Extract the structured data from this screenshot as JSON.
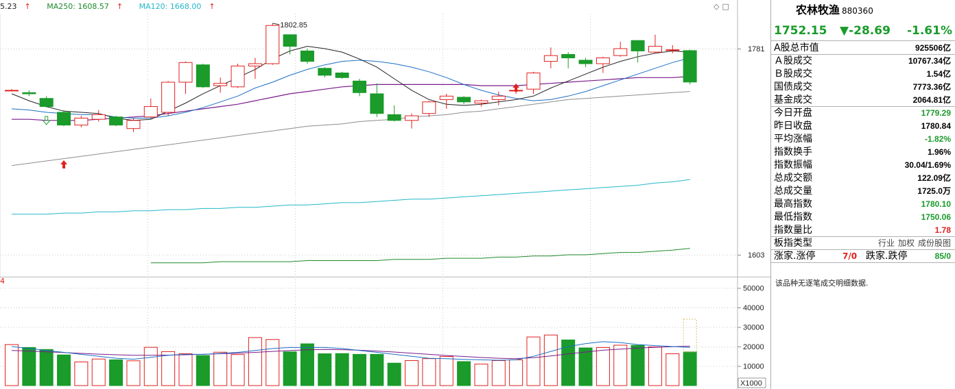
{
  "legend": {
    "ma_first": "5.23",
    "ma250": "MA250: 1608.57",
    "ma120": "MA120: 1668.00",
    "vol_label": "4"
  },
  "colors": {
    "up": "#e0201e",
    "down": "#1a9b2a",
    "ma5": "#222222",
    "ma10": "#1b6fc4",
    "ma20": "#7a1a8a",
    "ma60": "#8c8c8c",
    "ma120": "#23b7c9",
    "ma250": "#1e8a2a"
  },
  "chart_data": {
    "type": "candlestick",
    "price_axis": {
      "ticks": [
        1781,
        1603
      ]
    },
    "volume_axis": {
      "ticks": [
        50000,
        40000,
        30000,
        20000,
        10000
      ],
      "unit": "X1000"
    },
    "annotations": {
      "high_label": "1802.85"
    },
    "candles": [
      {
        "o": 1745,
        "c": 1745,
        "h": 1746,
        "l": 1745,
        "v": 21000
      },
      {
        "o": 1743,
        "c": 1742,
        "h": 1745,
        "l": 1740,
        "v": 19500
      },
      {
        "o": 1738,
        "c": 1731,
        "h": 1740,
        "l": 1730,
        "v": 18500
      },
      {
        "o": 1726,
        "c": 1715,
        "h": 1728,
        "l": 1714,
        "v": 15700
      },
      {
        "o": 1715,
        "c": 1721,
        "h": 1723,
        "l": 1713,
        "v": 12100
      },
      {
        "o": 1720,
        "c": 1724,
        "h": 1728,
        "l": 1718,
        "v": 13600
      },
      {
        "o": 1722,
        "c": 1715,
        "h": 1723,
        "l": 1714,
        "v": 13200
      },
      {
        "o": 1712,
        "c": 1719,
        "h": 1721,
        "l": 1709,
        "v": 12700
      },
      {
        "o": 1722,
        "c": 1731,
        "h": 1738,
        "l": 1721,
        "v": 19600
      },
      {
        "o": 1726,
        "c": 1752,
        "h": 1753,
        "l": 1723,
        "v": 17400
      },
      {
        "o": 1752,
        "c": 1769,
        "h": 1770,
        "l": 1742,
        "v": 16300
      },
      {
        "o": 1767,
        "c": 1748,
        "h": 1768,
        "l": 1747,
        "v": 15400
      },
      {
        "o": 1749,
        "c": 1751,
        "h": 1756,
        "l": 1743,
        "v": 17100
      },
      {
        "o": 1748,
        "c": 1766,
        "h": 1768,
        "l": 1747,
        "v": 15900
      },
      {
        "o": 1766,
        "c": 1768,
        "h": 1773,
        "l": 1755,
        "v": 24600
      },
      {
        "o": 1768,
        "c": 1801,
        "h": 1802.85,
        "l": 1767,
        "v": 23600
      },
      {
        "o": 1793,
        "c": 1783,
        "h": 1793,
        "l": 1776,
        "v": 17300
      },
      {
        "o": 1779,
        "c": 1770,
        "h": 1781,
        "l": 1768,
        "v": 21400
      },
      {
        "o": 1764,
        "c": 1758,
        "h": 1765,
        "l": 1756,
        "v": 16300
      },
      {
        "o": 1760,
        "c": 1756,
        "h": 1761,
        "l": 1755,
        "v": 16400
      },
      {
        "o": 1753,
        "c": 1743,
        "h": 1755,
        "l": 1740,
        "v": 16000
      },
      {
        "o": 1742,
        "c": 1725,
        "h": 1751,
        "l": 1722,
        "v": 16000
      },
      {
        "o": 1724,
        "c": 1719,
        "h": 1732,
        "l": 1718,
        "v": 11500
      },
      {
        "o": 1719,
        "c": 1723,
        "h": 1725,
        "l": 1712,
        "v": 12800
      },
      {
        "o": 1725,
        "c": 1735,
        "h": 1736,
        "l": 1722,
        "v": 13800
      },
      {
        "o": 1737,
        "c": 1740,
        "h": 1742,
        "l": 1729,
        "v": 14900
      },
      {
        "o": 1739,
        "c": 1735,
        "h": 1740,
        "l": 1733,
        "v": 12300
      },
      {
        "o": 1734,
        "c": 1736,
        "h": 1737,
        "l": 1731,
        "v": 11000
      },
      {
        "o": 1737,
        "c": 1740,
        "h": 1744,
        "l": 1732,
        "v": 12800
      },
      {
        "o": 1745,
        "c": 1745,
        "h": 1745,
        "l": 1742,
        "v": 13200
      },
      {
        "o": 1746,
        "c": 1760,
        "h": 1761,
        "l": 1742,
        "v": 24900
      },
      {
        "o": 1770,
        "c": 1775,
        "h": 1782,
        "l": 1764,
        "v": 25900
      },
      {
        "o": 1776,
        "c": 1773,
        "h": 1778,
        "l": 1764,
        "v": 23400
      },
      {
        "o": 1771,
        "c": 1768,
        "h": 1773,
        "l": 1765,
        "v": 19300
      },
      {
        "o": 1768,
        "c": 1773,
        "h": 1774,
        "l": 1760,
        "v": 19500
      },
      {
        "o": 1775,
        "c": 1781,
        "h": 1787,
        "l": 1774,
        "v": 20700
      },
      {
        "o": 1788,
        "c": 1779,
        "h": 1788,
        "l": 1769,
        "v": 20600
      },
      {
        "o": 1778,
        "c": 1783,
        "h": 1793,
        "l": 1777,
        "v": 19800
      },
      {
        "o": 1780,
        "c": 1780,
        "h": 1784,
        "l": 1777,
        "v": 16300
      },
      {
        "o": 1779.29,
        "c": 1752.15,
        "h": 1780.1,
        "l": 1750.06,
        "v": 17250
      }
    ],
    "ma5": [
      1742,
      1736,
      1731,
      1727,
      1726,
      1725,
      1721,
      1719,
      1720,
      1727,
      1734,
      1742,
      1749,
      1756,
      1763,
      1772,
      1779,
      1783,
      1781,
      1778,
      1772,
      1765,
      1755,
      1745,
      1737,
      1733,
      1732,
      1733,
      1735,
      1737,
      1740,
      1747,
      1753,
      1759,
      1765,
      1770,
      1774,
      1777,
      1779,
      1778
    ],
    "ma10": [
      1729,
      1728,
      1726,
      1725,
      1724,
      1724,
      1722,
      1721,
      1721,
      1723,
      1726,
      1730,
      1735,
      1740,
      1747,
      1752,
      1758,
      1763,
      1767,
      1770,
      1771,
      1770,
      1768,
      1765,
      1761,
      1756,
      1750,
      1745,
      1741,
      1738,
      1736,
      1737,
      1740,
      1744,
      1749,
      1754,
      1759,
      1764,
      1769,
      1773
    ],
    "ma20": [
      1720,
      1720,
      1719,
      1719,
      1719,
      1720,
      1721,
      1722,
      1723,
      1725,
      1727,
      1729,
      1731,
      1733,
      1736,
      1739,
      1742,
      1744,
      1746,
      1748,
      1749,
      1750,
      1750,
      1750,
      1750,
      1750,
      1750,
      1749,
      1749,
      1749,
      1750,
      1751,
      1752,
      1753,
      1754,
      1755,
      1756,
      1756,
      1756,
      1757
    ],
    "ma60": [
      1680,
      1682,
      1684,
      1686,
      1688,
      1690,
      1692,
      1694,
      1696,
      1698,
      1700,
      1702,
      1704,
      1706,
      1708,
      1710,
      1712,
      1714,
      1715,
      1716,
      1718,
      1719,
      1720,
      1722,
      1723,
      1724,
      1726,
      1727,
      1729,
      1731,
      1733,
      1735,
      1737,
      1738,
      1739,
      1740,
      1741,
      1742,
      1743,
      1744
    ],
    "ma120": [
      1638,
      1638,
      1638,
      1639,
      1639,
      1640,
      1640,
      1641,
      1641,
      1642,
      1642,
      1643,
      1643,
      1644,
      1644,
      1645,
      1646,
      1646,
      1647,
      1648,
      1648,
      1649,
      1650,
      1651,
      1651,
      1652,
      1653,
      1654,
      1655,
      1656,
      1657,
      1658,
      1659,
      1660,
      1661,
      1662,
      1663,
      1665,
      1666,
      1668
    ],
    "ma250": [
      null,
      null,
      null,
      null,
      null,
      null,
      null,
      null,
      1596,
      1596,
      1596,
      1596,
      1597,
      1597,
      1597,
      1597,
      1597,
      1598,
      1598,
      1598,
      1598,
      1598,
      1599,
      1599,
      1599,
      1600,
      1600,
      1600,
      1601,
      1601,
      1602,
      1602,
      1603,
      1603,
      1604,
      1605,
      1605,
      1606,
      1607,
      1608.57
    ],
    "vol_ma5": [
      20000,
      19000,
      18000,
      17000,
      16000,
      15000,
      14000,
      13500,
      14500,
      15500,
      16000,
      16000,
      16500,
      17000,
      18000,
      19000,
      19500,
      19500,
      19500,
      19000,
      18000,
      17000,
      16000,
      15000,
      14000,
      13800,
      13400,
      13200,
      13000,
      13200,
      15000,
      17500,
      20000,
      21500,
      22500,
      22000,
      21000,
      20500,
      20000,
      19500
    ],
    "vol_ma10": [
      18000,
      17700,
      17300,
      16900,
      16500,
      16100,
      15800,
      15500,
      15500,
      15600,
      15800,
      16000,
      16300,
      16600,
      17000,
      17500,
      18000,
      18300,
      18500,
      18400,
      18100,
      17700,
      17200,
      16600,
      16000,
      15400,
      14900,
      14400,
      14000,
      13800,
      14300,
      15200,
      16200,
      17200,
      18100,
      18700,
      19200,
      19600,
      19900,
      20200
    ]
  },
  "info": {
    "name": "农林牧渔",
    "code": "880360",
    "price": "1752.15",
    "change": "▼-28.69",
    "change_pct": "-1.61%",
    "rows": [
      {
        "label": "A股总市值",
        "value": "925506亿",
        "color": "black"
      },
      {
        "label": "Ａ股成交",
        "value": "10767.34亿",
        "color": "black"
      },
      {
        "label": "Ｂ股成交",
        "value": "1.54亿",
        "color": "black"
      },
      {
        "label": "国债成交",
        "value": "7773.36亿",
        "color": "black"
      },
      {
        "label": "基金成交",
        "value": "2064.81亿",
        "color": "black"
      },
      {
        "label": "今日开盘",
        "value": "1779.29",
        "color": "green"
      },
      {
        "label": "昨日收盘",
        "value": "1780.84",
        "color": "black"
      },
      {
        "label": "平均涨幅",
        "value": "-1.82%",
        "color": "green"
      },
      {
        "label": "指数换手",
        "value": "1.96%",
        "color": "black"
      },
      {
        "label": "指数振幅",
        "value": "30.04/1.69%",
        "color": "black"
      },
      {
        "label": "总成交额",
        "value": "122.09亿",
        "color": "black"
      },
      {
        "label": "总成交量",
        "value": "1725.0万",
        "color": "black"
      },
      {
        "label": "最高指数",
        "value": "1780.10",
        "color": "green"
      },
      {
        "label": "最低指数",
        "value": "1750.06",
        "color": "green"
      },
      {
        "label": "指数量比",
        "value": "1.78",
        "color": "red"
      }
    ],
    "plate_type": {
      "label": "板指类型",
      "items": [
        "行业",
        "加权",
        "成份股"
      ],
      "suffix": "图"
    },
    "up_down": {
      "label1": "涨家.涨停",
      "value1": "7/0",
      "label2": "跌家.跌停",
      "value2": "85/0"
    },
    "note": "该品种无逐笔成交明细数据."
  }
}
